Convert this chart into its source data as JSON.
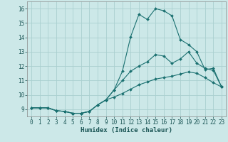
{
  "title": "",
  "xlabel": "Humidex (Indice chaleur)",
  "bg_color": "#cce8e8",
  "line_color": "#1a7070",
  "grid_color": "#aad0d0",
  "xlim": [
    -0.5,
    23.5
  ],
  "ylim": [
    8.5,
    16.5
  ],
  "xticks": [
    0,
    1,
    2,
    3,
    4,
    5,
    6,
    7,
    8,
    9,
    10,
    11,
    12,
    13,
    14,
    15,
    16,
    17,
    18,
    19,
    20,
    21,
    22,
    23
  ],
  "yticks": [
    9,
    10,
    11,
    12,
    13,
    14,
    15,
    16
  ],
  "line1_x": [
    0,
    1,
    2,
    3,
    4,
    5,
    6,
    7,
    8,
    9,
    10,
    11,
    12,
    13,
    14,
    15,
    16,
    17,
    18,
    19,
    20,
    21,
    22,
    23
  ],
  "line1_y": [
    9.1,
    9.1,
    9.1,
    8.9,
    8.85,
    8.72,
    8.72,
    8.85,
    9.3,
    9.65,
    10.35,
    11.65,
    14.05,
    15.6,
    15.25,
    16.0,
    15.85,
    15.5,
    13.85,
    13.5,
    13.0,
    11.75,
    11.85,
    10.55
  ],
  "line2_x": [
    0,
    1,
    2,
    3,
    4,
    5,
    6,
    7,
    8,
    9,
    10,
    11,
    12,
    13,
    14,
    15,
    16,
    17,
    18,
    19,
    20,
    21,
    22,
    23
  ],
  "line2_y": [
    9.1,
    9.1,
    9.1,
    8.9,
    8.85,
    8.72,
    8.72,
    8.85,
    9.3,
    9.65,
    10.35,
    11.0,
    11.65,
    12.0,
    12.3,
    12.8,
    12.7,
    12.2,
    12.5,
    13.0,
    12.2,
    11.85,
    11.7,
    10.55
  ],
  "line3_x": [
    0,
    1,
    2,
    3,
    4,
    5,
    6,
    7,
    8,
    9,
    10,
    11,
    12,
    13,
    14,
    15,
    16,
    17,
    18,
    19,
    20,
    21,
    22,
    23
  ],
  "line3_y": [
    9.1,
    9.1,
    9.1,
    8.9,
    8.85,
    8.72,
    8.72,
    8.85,
    9.3,
    9.65,
    9.85,
    10.1,
    10.4,
    10.7,
    10.9,
    11.1,
    11.2,
    11.3,
    11.45,
    11.6,
    11.5,
    11.2,
    10.85,
    10.55
  ],
  "label_fontsize": 6.5,
  "tick_fontsize": 5.5,
  "marker_size": 2.0,
  "line_width": 0.8
}
